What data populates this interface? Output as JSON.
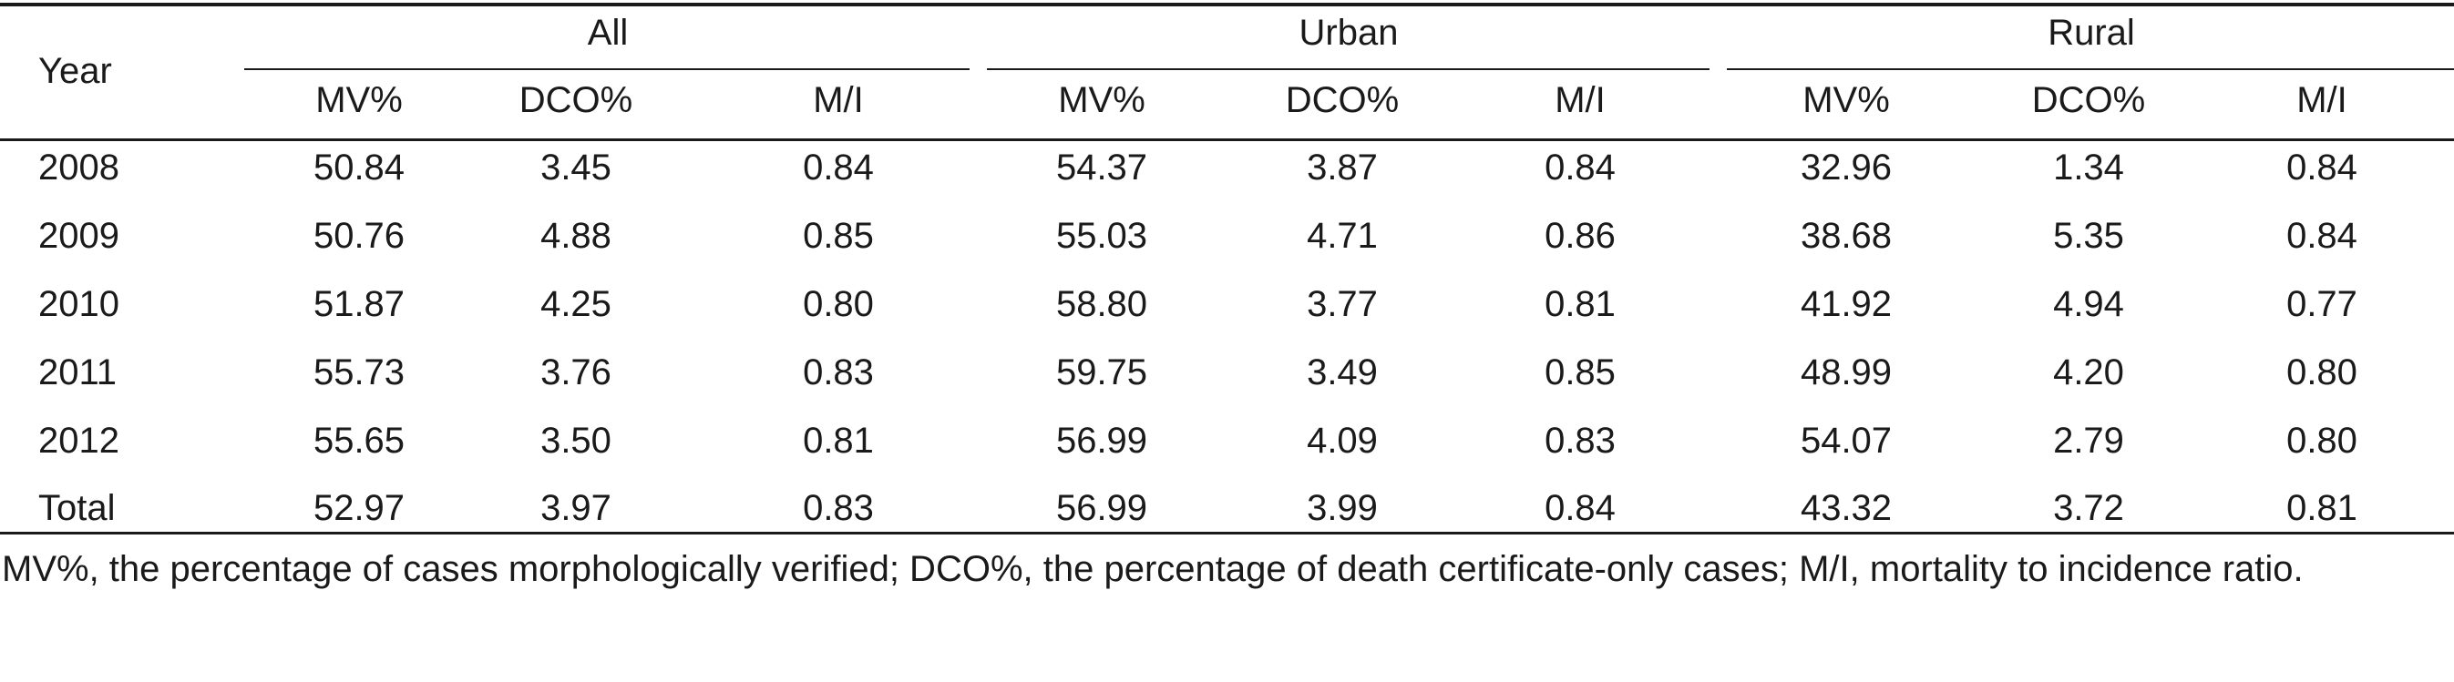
{
  "table": {
    "year_header": "Year",
    "groups": [
      "All",
      "Urban",
      "Rural"
    ],
    "subheaders": [
      "MV%",
      "DCO%",
      "M/I",
      "MV%",
      "DCO%",
      "M/I",
      "MV%",
      "DCO%",
      "M/I"
    ],
    "rows": [
      {
        "year": "2008",
        "values": [
          "50.84",
          "3.45",
          "0.84",
          "54.37",
          "3.87",
          "0.84",
          "32.96",
          "1.34",
          "0.84"
        ]
      },
      {
        "year": "2009",
        "values": [
          "50.76",
          "4.88",
          "0.85",
          "55.03",
          "4.71",
          "0.86",
          "38.68",
          "5.35",
          "0.84"
        ]
      },
      {
        "year": "2010",
        "values": [
          "51.87",
          "4.25",
          "0.80",
          "58.80",
          "3.77",
          "0.81",
          "41.92",
          "4.94",
          "0.77"
        ]
      },
      {
        "year": "2011",
        "values": [
          "55.73",
          "3.76",
          "0.83",
          "59.75",
          "3.49",
          "0.85",
          "48.99",
          "4.20",
          "0.80"
        ]
      },
      {
        "year": "2012",
        "values": [
          "55.65",
          "3.50",
          "0.81",
          "56.99",
          "4.09",
          "0.83",
          "54.07",
          "2.79",
          "0.80"
        ]
      },
      {
        "year": "Total",
        "values": [
          "52.97",
          "3.97",
          "0.83",
          "56.99",
          "3.99",
          "0.84",
          "43.32",
          "3.72",
          "0.81"
        ]
      }
    ]
  },
  "footnote": "MV%, the percentage of cases morphologically verified; DCO%, the percentage of death certificate-only cases; M/I, mortality to incidence ratio."
}
